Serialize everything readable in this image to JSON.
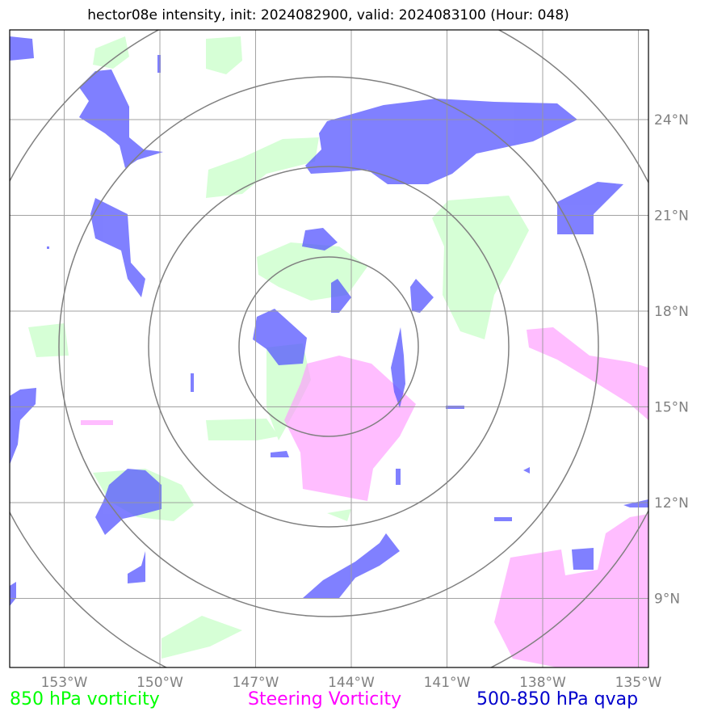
{
  "title": "hector08e intensity, init: 2024082900, valid: 2024083100 (Hour: 048)",
  "lon_labels": [
    "153°W",
    "150°W",
    "147°W",
    "144°W",
    "141°W",
    "138°W",
    "135°W"
  ],
  "lat_labels": [
    "24°N",
    "21°N",
    "18°N",
    "15°N",
    "12°N",
    "9°N"
  ],
  "legend": {
    "vorticity": "850 hPa vorticity",
    "steering": "Steering Vorticity",
    "qvap": "500-850 hPa qvap"
  },
  "colors": {
    "vorticity": "#ccffcc",
    "steering": "#ff99ff",
    "qvap": "#5555ff",
    "grid": "#999999",
    "rings": "#808080"
  },
  "map_extent": {
    "lon_min": -154.7,
    "lon_max": -134.7,
    "lat_min": 7.0,
    "lat_max": 26.9
  },
  "storm_center": {
    "lon": -144.7,
    "lat": 16.9
  }
}
